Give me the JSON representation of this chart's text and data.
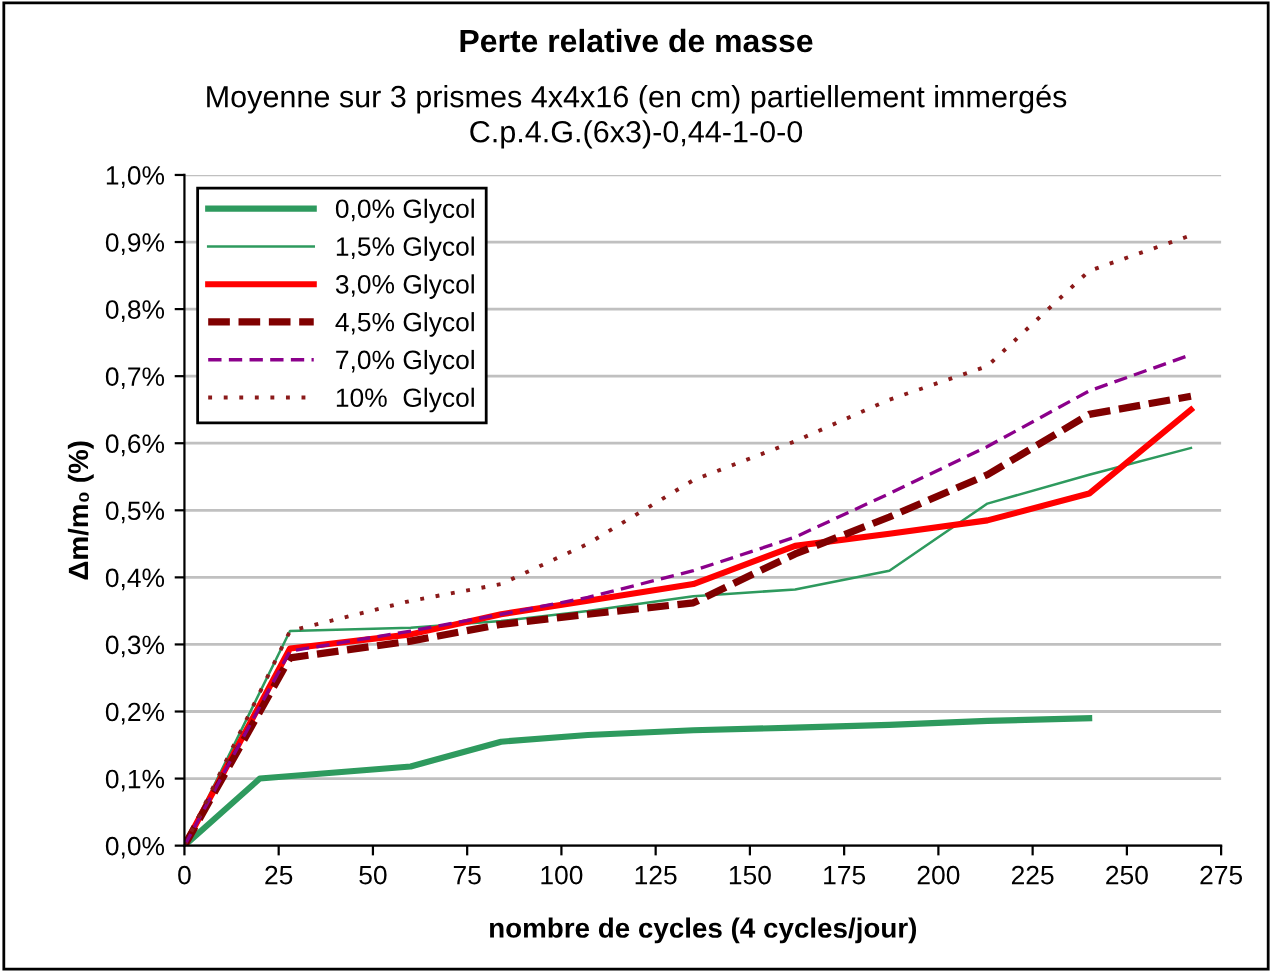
{
  "chart_data": {
    "type": "line",
    "title": "Perte relative de masse",
    "subtitle": "Moyenne sur 3 prismes 4x4x16 (en cm) partiellement immergés\nC.p.4.G.(6x3)-0,44-1-0-0",
    "xlabel": "nombre de cycles (4 cycles/jour)",
    "ylabel": "Δm/m₀ (%)",
    "xlim": [
      0,
      275
    ],
    "xticks": [
      0,
      25,
      50,
      75,
      100,
      125,
      150,
      175,
      200,
      225,
      250,
      275
    ],
    "ylim": [
      0,
      1.0
    ],
    "yticks": [
      {
        "value": 0,
        "label": "0,0%"
      },
      {
        "value": 0.1,
        "label": "0,1%"
      },
      {
        "value": 0.2,
        "label": "0,2%"
      },
      {
        "value": 0.3,
        "label": "0,3%"
      },
      {
        "value": 0.4,
        "label": "0,4%"
      },
      {
        "value": 0.5,
        "label": "0,5%"
      },
      {
        "value": 0.6,
        "label": "0,6%"
      },
      {
        "value": 0.7,
        "label": "0,7%"
      },
      {
        "value": 0.8,
        "label": "0,8%"
      },
      {
        "value": 0.9,
        "label": "0,9%"
      },
      {
        "value": 1.0,
        "label": "1,0%"
      }
    ],
    "grid": "y",
    "legend": "top left",
    "marker": "none",
    "series": [
      {
        "name": "0,0% Glycol",
        "color": "#2e9a5e",
        "line_style": "solid",
        "x": [
          0,
          20,
          60,
          84,
          107,
          135,
          162,
          187,
          213,
          240
        ],
        "values": [
          0,
          0.1,
          0.118,
          0.155,
          0.165,
          0.172,
          0.176,
          0.18,
          0.186,
          0.19
        ]
      },
      {
        "name": "1,5% Glycol",
        "color": "#2e9a5e",
        "line_style": "solid",
        "x": [
          0,
          28,
          60,
          84,
          107,
          135,
          162,
          187,
          213,
          240,
          267
        ],
        "values": [
          0,
          0.32,
          0.325,
          0.335,
          0.35,
          0.372,
          0.382,
          0.41,
          0.51,
          0.553,
          0.593
        ]
      },
      {
        "name": "3,0% Glycol",
        "color": "#ff0000",
        "line_style": "solid",
        "x": [
          0,
          28,
          60,
          84,
          107,
          135,
          162,
          187,
          213,
          240,
          267
        ],
        "values": [
          0,
          0.294,
          0.315,
          0.345,
          0.365,
          0.39,
          0.447,
          0.465,
          0.485,
          0.525,
          0.65
        ]
      },
      {
        "name": "4,5% Glycol",
        "color": "#800000",
        "line_style": "dashed",
        "x": [
          0,
          28,
          60,
          84,
          107,
          135,
          162,
          187,
          213,
          240,
          267
        ],
        "values": [
          0,
          0.28,
          0.305,
          0.33,
          0.345,
          0.362,
          0.435,
          0.49,
          0.553,
          0.643,
          0.67
        ]
      },
      {
        "name": "7,0% Glycol",
        "color": "#8b008b",
        "line_style": "dashed",
        "x": [
          0,
          28,
          60,
          84,
          107,
          135,
          162,
          187,
          213,
          240,
          267
        ],
        "values": [
          0,
          0.29,
          0.32,
          0.345,
          0.37,
          0.41,
          0.46,
          0.525,
          0.595,
          0.678,
          0.732
        ]
      },
      {
        "name": "10%  Glycol",
        "color": "#8b1a1a",
        "line_style": "dotted",
        "x": [
          0,
          28,
          60,
          84,
          107,
          135,
          162,
          187,
          213,
          240,
          267
        ],
        "values": [
          0,
          0.32,
          0.365,
          0.39,
          0.45,
          0.545,
          0.603,
          0.665,
          0.715,
          0.857,
          0.91
        ]
      }
    ]
  }
}
